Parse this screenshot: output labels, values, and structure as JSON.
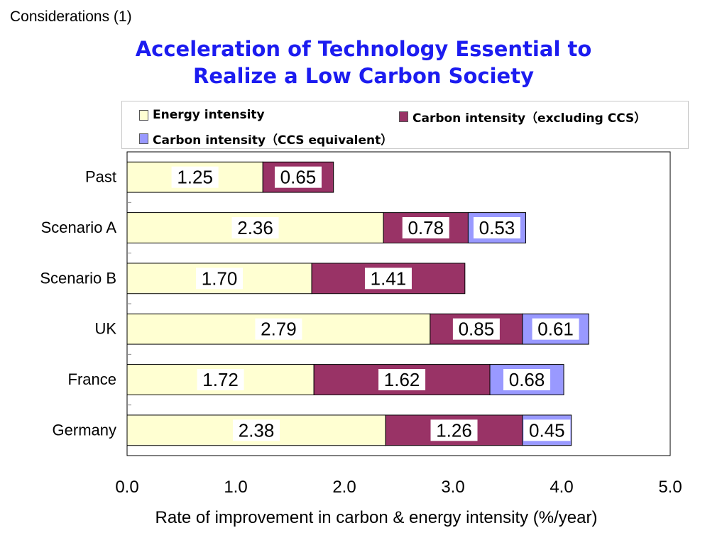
{
  "header": {
    "corner_label": "Considerations (1)",
    "title_line1": "Acceleration of Technology Essential to",
    "title_line2": "Realize a Low Carbon Society"
  },
  "colors": {
    "energy": "#ffffd2",
    "carbon_ex_ccs": "#993366",
    "ccs": "#9999ff",
    "title": "#1c1cf0"
  },
  "chart_data": {
    "type": "bar",
    "orientation": "horizontal",
    "stacked": true,
    "categories": [
      "Past",
      "Scenario A",
      "Scenario B",
      "UK",
      "France",
      "Germany"
    ],
    "series": [
      {
        "name": "Energy intensity",
        "values": [
          1.25,
          2.36,
          1.7,
          2.79,
          1.72,
          2.38
        ],
        "labels": [
          "1.25",
          "2.36",
          "1.70",
          "2.79",
          "1.72",
          "2.38"
        ]
      },
      {
        "name": "Carbon intensity（excluding CCS）",
        "values": [
          0.65,
          0.78,
          1.41,
          0.85,
          1.62,
          1.26
        ],
        "labels": [
          "0.65",
          "0.78",
          "1.41",
          "0.85",
          "1.62",
          "1.26"
        ]
      },
      {
        "name": "Carbon intensity（CCS equivalent）",
        "values": [
          0,
          0.53,
          0,
          0.61,
          0.68,
          0.45
        ],
        "labels": [
          "",
          "0.53",
          "",
          "0.61",
          "0.68",
          "0.45"
        ]
      }
    ],
    "xlabel": "Rate of improvement in carbon & energy intensity (%/year)",
    "xlim": [
      0,
      5
    ],
    "xticks": [
      "0.0",
      "1.0",
      "2.0",
      "3.0",
      "4.0",
      "5.0"
    ],
    "grid": false,
    "legend_position": "top"
  }
}
